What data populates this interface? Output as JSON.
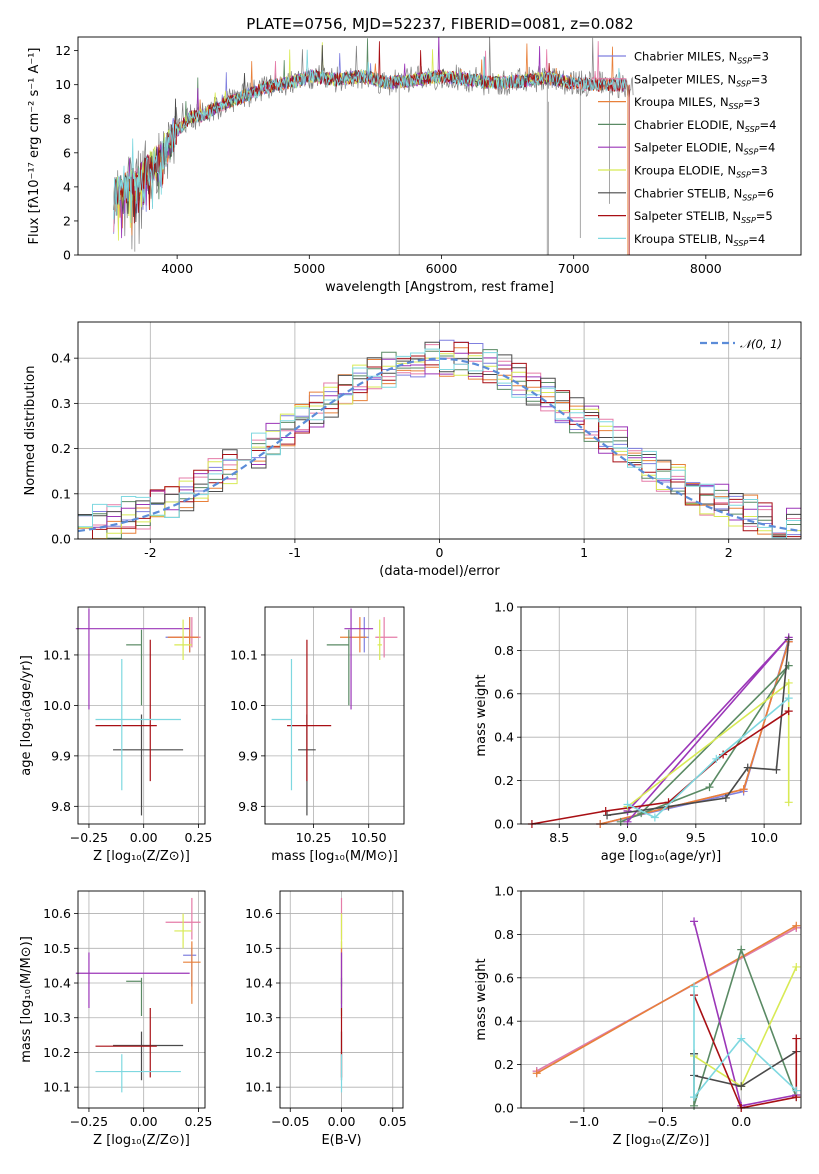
{
  "colors": {
    "chabrier_miles": "#7f7fdf",
    "salpeter_miles": "#e57ca8",
    "kroupa_miles": "#e8803a",
    "chabrier_elodie": "#5a8a64",
    "salpeter_elodie": "#9b36b8",
    "kroupa_elodie": "#d8ea55",
    "chabrier_stelib": "#4a4a4a",
    "salpeter_stelib": "#a80f14",
    "kroupa_stelib": "#7fd8e0",
    "gaussian": "#5b8cd8",
    "data_gray": "#808080",
    "grid": "#b0b0b0"
  },
  "chart_data": [
    {
      "id": "spectrum",
      "type": "line",
      "title": "PLATE=0756, MJD=52237, FIBERID=0081, z=0.082",
      "xlabel": "wavelength [Angstrom, rest frame]",
      "ylabel": "Flux [fλ10⁻¹⁷ erg cm⁻² s⁻¹ A⁻¹]",
      "xlim": [
        3250,
        8720
      ],
      "ylim": [
        0,
        12.8
      ],
      "xticks": [
        4000,
        5000,
        6000,
        7000,
        8000
      ],
      "yticks": [
        0,
        2,
        4,
        6,
        8,
        10,
        12
      ],
      "grid": false,
      "legend_position": "right",
      "continuum_x": [
        3520,
        3700,
        3800,
        3900,
        4000,
        4100,
        4200,
        4300,
        4500,
        4700,
        4900,
        5000,
        5200,
        5400,
        5600,
        5800,
        6000,
        6200,
        6400,
        6600,
        6800,
        7000,
        7200,
        7350,
        7450
      ],
      "continuum_y": [
        3.6,
        4.3,
        5.2,
        5.9,
        7.3,
        8.1,
        8.2,
        8.7,
        9.3,
        9.9,
        10.2,
        10.5,
        10.3,
        10.5,
        10.1,
        10.3,
        10.5,
        10.3,
        10.1,
        10.2,
        10.4,
        10.1,
        10.0,
        10.0,
        10.0
      ],
      "series": [
        {
          "name": "Chabrier MILES, N",
          "sub": "SSP",
          "suffix": "=3",
          "color_key": "chabrier_miles"
        },
        {
          "name": "Salpeter MILES, N",
          "sub": "SSP",
          "suffix": "=3",
          "color_key": "salpeter_miles"
        },
        {
          "name": "Kroupa MILES, N",
          "sub": "SSP",
          "suffix": "=3",
          "color_key": "kroupa_miles"
        },
        {
          "name": "Chabrier ELODIE, N",
          "sub": "SSP",
          "suffix": "=4",
          "color_key": "chabrier_elodie"
        },
        {
          "name": "Salpeter ELODIE, N",
          "sub": "SSP",
          "suffix": "=4",
          "color_key": "salpeter_elodie"
        },
        {
          "name": "Kroupa ELODIE, N",
          "sub": "SSP",
          "suffix": "=3",
          "color_key": "kroupa_elodie"
        },
        {
          "name": "Chabrier STELIB, N",
          "sub": "SSP",
          "suffix": "=6",
          "color_key": "chabrier_stelib"
        },
        {
          "name": "Salpeter STELIB, N",
          "sub": "SSP",
          "suffix": "=5",
          "color_key": "salpeter_stelib"
        },
        {
          "name": "Kroupa STELIB, N",
          "sub": "SSP",
          "suffix": "=4",
          "color_key": "kroupa_stelib"
        }
      ]
    },
    {
      "id": "residuals",
      "type": "line",
      "xlabel": "(data-model)/error",
      "ylabel": "Normed distribution",
      "xlim": [
        -2.5,
        2.5
      ],
      "ylim": [
        0,
        0.48
      ],
      "xticks": [
        -2,
        -1,
        0,
        1,
        2
      ],
      "yticks": [
        0.0,
        0.1,
        0.2,
        0.3,
        0.4
      ],
      "grid": true,
      "legend_position": "top-right",
      "gaussian_label": "𝒩(0, 1)",
      "bin_edges_start": -2.5,
      "bin_width": 0.1
    },
    {
      "id": "age_vs_z",
      "type": "scatter",
      "xlabel": "Z [log₁₀(Z/Z⊙)]",
      "ylabel": "age  [log₁₀(age/yr)]",
      "xlim": [
        -0.3,
        0.28
      ],
      "ylim": [
        9.765,
        10.195
      ],
      "xticks": [
        -0.25,
        0.0,
        0.25
      ],
      "xtick_labels": [
        "−0.25",
        "0.00",
        "0.25"
      ],
      "yticks": [
        9.8,
        9.9,
        10.0,
        10.1
      ],
      "grid": true,
      "points": [
        {
          "x": 0.21,
          "y": 10.135,
          "xerr": [
            0.11,
            0.04
          ],
          "yerr": [
            0.03,
            0.04
          ],
          "color_key": "chabrier_miles"
        },
        {
          "x": 0.22,
          "y": 10.135,
          "xerr": [
            0.1,
            0.04
          ],
          "yerr": [
            0.02,
            0.04
          ],
          "color_key": "salpeter_miles"
        },
        {
          "x": 0.21,
          "y": 10.135,
          "xerr": [
            0.1,
            0.04
          ],
          "yerr": [
            0.03,
            0.04
          ],
          "color_key": "kroupa_miles"
        },
        {
          "x": -0.01,
          "y": 10.12,
          "xerr": [
            0.07,
            0.0
          ],
          "yerr": [
            0.12,
            0.03
          ],
          "color_key": "chabrier_elodie"
        },
        {
          "x": -0.25,
          "y": 10.152,
          "xerr": [
            0.06,
            0.46
          ],
          "yerr": [
            0.16,
            0.04
          ],
          "color_key": "salpeter_elodie"
        },
        {
          "x": 0.18,
          "y": 10.12,
          "xerr": [
            0.04,
            0.04
          ],
          "yerr": [
            0.03,
            0.05
          ],
          "color_key": "kroupa_elodie"
        },
        {
          "x": -0.01,
          "y": 9.912,
          "xerr": [
            0.13,
            0.19
          ],
          "yerr": [
            0.13,
            0.07
          ],
          "color_key": "chabrier_stelib"
        },
        {
          "x": 0.03,
          "y": 9.96,
          "xerr": [
            0.25,
            0.03
          ],
          "yerr": [
            0.11,
            0.17
          ],
          "color_key": "salpeter_stelib"
        },
        {
          "x": -0.1,
          "y": 9.972,
          "xerr": [
            0.12,
            0.27
          ],
          "yerr": [
            0.14,
            0.12
          ],
          "color_key": "kroupa_stelib"
        }
      ]
    },
    {
      "id": "age_vs_mass",
      "type": "scatter",
      "xlabel": "mass [log₁₀(M/M⊙)]",
      "ylabel": "",
      "xlim": [
        10.03,
        10.66
      ],
      "ylim": [
        9.765,
        10.195
      ],
      "xticks": [
        10.25,
        10.5
      ],
      "xtick_labels": [
        "10.25",
        "10.50"
      ],
      "yticks": [
        9.8,
        9.9,
        10.0,
        10.1
      ],
      "grid": true,
      "points": [
        {
          "x": 10.48,
          "y": 10.135,
          "xerr": [
            0.02,
            0.02
          ],
          "yerr": [
            0.03,
            0.04
          ],
          "color_key": "chabrier_miles"
        },
        {
          "x": 10.57,
          "y": 10.135,
          "xerr": [
            0.04,
            0.06
          ],
          "yerr": [
            0.04,
            0.04
          ],
          "color_key": "salpeter_miles"
        },
        {
          "x": 10.46,
          "y": 10.135,
          "xerr": [
            0.09,
            0.03
          ],
          "yerr": [
            0.03,
            0.04
          ],
          "color_key": "kroupa_miles"
        },
        {
          "x": 10.41,
          "y": 10.12,
          "xerr": [
            0.1,
            0.0
          ],
          "yerr": [
            0.12,
            0.03
          ],
          "color_key": "chabrier_elodie"
        },
        {
          "x": 10.42,
          "y": 10.152,
          "xerr": [
            0.03,
            0.1
          ],
          "yerr": [
            0.16,
            0.04
          ],
          "color_key": "salpeter_elodie"
        },
        {
          "x": 10.55,
          "y": 10.12,
          "xerr": [
            0.01,
            0.01
          ],
          "yerr": [
            0.03,
            0.05
          ],
          "color_key": "kroupa_elodie"
        },
        {
          "x": 10.22,
          "y": 9.912,
          "xerr": [
            0.04,
            0.04
          ],
          "yerr": [
            0.13,
            0.07
          ],
          "color_key": "chabrier_stelib"
        },
        {
          "x": 10.22,
          "y": 9.96,
          "xerr": [
            0.09,
            0.11
          ],
          "yerr": [
            0.11,
            0.17
          ],
          "color_key": "salpeter_stelib"
        },
        {
          "x": 10.15,
          "y": 9.972,
          "xerr": [
            0.09,
            0.0
          ],
          "yerr": [
            0.14,
            0.12
          ],
          "color_key": "kroupa_stelib"
        }
      ]
    },
    {
      "id": "weight_vs_age",
      "type": "line",
      "xlabel": "age  [log₁₀(age/yr)]",
      "ylabel": "mass weight",
      "xlim": [
        8.22,
        10.27
      ],
      "ylim": [
        0,
        1.0
      ],
      "xticks": [
        8.5,
        9.0,
        9.5,
        10.0
      ],
      "xtick_labels": [
        "8.5",
        "9.0",
        "9.5",
        "10.0"
      ],
      "yticks": [
        0.0,
        0.2,
        0.4,
        0.6,
        0.8,
        1.0
      ],
      "grid": true,
      "series": [
        {
          "color_key": "chabrier_miles",
          "x": [
            8.8,
            9.85,
            10.18
          ],
          "y": [
            0.0,
            0.15,
            0.85
          ]
        },
        {
          "color_key": "salpeter_miles",
          "x": [
            8.8,
            9.85,
            10.18
          ],
          "y": [
            0.0,
            0.16,
            0.84
          ]
        },
        {
          "color_key": "kroupa_miles",
          "x": [
            8.8,
            9.85,
            10.18
          ],
          "y": [
            0.0,
            0.16,
            0.84
          ]
        },
        {
          "color_key": "chabrier_elodie",
          "x": [
            8.95,
            9.6,
            10.18,
            9.1
          ],
          "y": [
            0.01,
            0.17,
            0.73,
            0.05
          ]
        },
        {
          "color_key": "salpeter_elodie",
          "x": [
            9.0,
            9.0,
            10.18,
            9.0
          ],
          "y": [
            0.06,
            0.06,
            0.86,
            0.01
          ]
        },
        {
          "color_key": "kroupa_elodie",
          "x": [
            9.0,
            10.18,
            10.18
          ],
          "y": [
            0.08,
            0.65,
            0.1
          ]
        },
        {
          "color_key": "chabrier_stelib",
          "x": [
            8.85,
            9.3,
            9.72,
            9.88,
            10.09,
            10.18
          ],
          "y": [
            0.04,
            0.08,
            0.12,
            0.26,
            0.25,
            0.85
          ]
        },
        {
          "color_key": "salpeter_stelib",
          "x": [
            8.3,
            8.84,
            9.3,
            9.7,
            10.18
          ],
          "y": [
            0.0,
            0.06,
            0.1,
            0.32,
            0.52
          ]
        },
        {
          "color_key": "kroupa_stelib",
          "x": [
            9.0,
            9.2,
            9.65,
            10.18
          ],
          "y": [
            0.09,
            0.03,
            0.3,
            0.58
          ]
        }
      ]
    },
    {
      "id": "mass_vs_z",
      "type": "scatter",
      "xlabel": "Z [log₁₀(Z/Z⊙)]",
      "ylabel": "mass [log₁₀(M/M⊙)]",
      "xlim": [
        -0.3,
        0.28
      ],
      "ylim": [
        10.04,
        10.665
      ],
      "xticks": [
        -0.25,
        0.0,
        0.25
      ],
      "xtick_labels": [
        "−0.25",
        "0.00",
        "0.25"
      ],
      "yticks": [
        10.1,
        10.2,
        10.3,
        10.4,
        10.5,
        10.6
      ],
      "grid": true,
      "points": [
        {
          "x": 0.22,
          "y": 10.48,
          "xerr": [
            0.04,
            0.02
          ],
          "yerr": [
            0.09,
            0.02
          ],
          "color_key": "chabrier_miles"
        },
        {
          "x": 0.22,
          "y": 10.575,
          "xerr": [
            0.12,
            0.04
          ],
          "yerr": [
            0.05,
            0.07
          ],
          "color_key": "salpeter_miles"
        },
        {
          "x": 0.22,
          "y": 10.46,
          "xerr": [
            0.04,
            0.04
          ],
          "yerr": [
            0.12,
            0.06
          ],
          "color_key": "kroupa_miles"
        },
        {
          "x": -0.01,
          "y": 10.405,
          "xerr": [
            0.07,
            0.0
          ],
          "yerr": [
            0.1,
            0.01
          ],
          "color_key": "chabrier_elodie"
        },
        {
          "x": -0.25,
          "y": 10.428,
          "xerr": [
            0.06,
            0.46
          ],
          "yerr": [
            0.1,
            0.06
          ],
          "color_key": "salpeter_elodie"
        },
        {
          "x": 0.18,
          "y": 10.55,
          "xerr": [
            0.04,
            0.04
          ],
          "yerr": [
            0.05,
            0.05
          ],
          "color_key": "kroupa_elodie"
        },
        {
          "x": -0.01,
          "y": 10.22,
          "xerr": [
            0.13,
            0.19
          ],
          "yerr": [
            0.1,
            0.04
          ],
          "color_key": "chabrier_stelib"
        },
        {
          "x": 0.03,
          "y": 10.218,
          "xerr": [
            0.25,
            0.03
          ],
          "yerr": [
            0.09,
            0.11
          ],
          "color_key": "salpeter_stelib"
        },
        {
          "x": -0.1,
          "y": 10.145,
          "xerr": [
            0.12,
            0.27
          ],
          "yerr": [
            0.06,
            0.05
          ],
          "color_key": "kroupa_stelib"
        }
      ]
    },
    {
      "id": "mass_vs_ebv",
      "type": "scatter",
      "xlabel": "E(B-V)",
      "ylabel": "",
      "xlim": [
        -0.06,
        0.06
      ],
      "ylim": [
        10.04,
        10.665
      ],
      "xticks": [
        -0.05,
        0.0,
        0.05
      ],
      "xtick_labels": [
        "−0.05",
        "0.00",
        "0.05"
      ],
      "yticks": [
        10.1,
        10.2,
        10.3,
        10.4,
        10.5,
        10.6
      ],
      "grid": true,
      "points": [
        {
          "x": 0.0,
          "y": 10.48,
          "yerr": [
            0.09,
            0.02
          ],
          "color_key": "chabrier_miles"
        },
        {
          "x": 0.0,
          "y": 10.575,
          "yerr": [
            0.05,
            0.07
          ],
          "color_key": "salpeter_miles"
        },
        {
          "x": 0.0,
          "y": 10.46,
          "yerr": [
            0.12,
            0.06
          ],
          "color_key": "kroupa_miles"
        },
        {
          "x": 0.0,
          "y": 10.405,
          "yerr": [
            0.1,
            0.01
          ],
          "color_key": "chabrier_elodie"
        },
        {
          "x": 0.0,
          "y": 10.428,
          "yerr": [
            0.1,
            0.06
          ],
          "color_key": "salpeter_elodie"
        },
        {
          "x": 0.0,
          "y": 10.55,
          "yerr": [
            0.05,
            0.05
          ],
          "color_key": "kroupa_elodie"
        },
        {
          "x": 0.0,
          "y": 10.22,
          "yerr": [
            0.1,
            0.04
          ],
          "color_key": "chabrier_stelib"
        },
        {
          "x": 0.0,
          "y": 10.218,
          "yerr": [
            0.09,
            0.11
          ],
          "color_key": "salpeter_stelib"
        },
        {
          "x": 0.0,
          "y": 10.145,
          "yerr": [
            0.06,
            0.05
          ],
          "color_key": "kroupa_stelib"
        }
      ]
    },
    {
      "id": "weight_vs_z",
      "type": "line",
      "xlabel": "Z [log₁₀(Z/Z⊙)]",
      "ylabel": "mass weight",
      "xlim": [
        -1.4,
        0.38
      ],
      "ylim": [
        0,
        1.0
      ],
      "xticks": [
        -1.0,
        -0.5,
        0.0
      ],
      "xtick_labels": [
        "−1.0",
        "−0.5",
        "0.0"
      ],
      "yticks": [
        0.0,
        0.2,
        0.4,
        0.6,
        0.8,
        1.0
      ],
      "grid": true,
      "series": [
        {
          "color_key": "chabrier_miles",
          "x": [
            -1.3,
            0.35
          ],
          "y": [
            0.17,
            0.83
          ]
        },
        {
          "color_key": "salpeter_miles",
          "x": [
            -1.3,
            0.35
          ],
          "y": [
            0.17,
            0.83
          ]
        },
        {
          "color_key": "kroupa_miles",
          "x": [
            -1.3,
            0.35
          ],
          "y": [
            0.16,
            0.84
          ]
        },
        {
          "color_key": "chabrier_elodie",
          "x": [
            -0.3,
            -0.3,
            0.0,
            0.35
          ],
          "y": [
            0.25,
            0.01,
            0.73,
            0.05
          ]
        },
        {
          "color_key": "salpeter_elodie",
          "x": [
            -0.3,
            0.0,
            0.35
          ],
          "y": [
            0.86,
            0.01,
            0.06
          ]
        },
        {
          "color_key": "kroupa_elodie",
          "x": [
            -0.3,
            0.0,
            0.35
          ],
          "y": [
            0.24,
            0.1,
            0.65
          ]
        },
        {
          "color_key": "chabrier_stelib",
          "x": [
            -0.3,
            -0.3,
            0.0,
            0.35
          ],
          "y": [
            0.25,
            0.15,
            0.1,
            0.26
          ]
        },
        {
          "color_key": "salpeter_stelib",
          "x": [
            -0.3,
            0.0,
            0.35,
            0.35
          ],
          "y": [
            0.52,
            0.0,
            0.05,
            0.32
          ]
        },
        {
          "color_key": "kroupa_stelib",
          "x": [
            -0.3,
            -0.3,
            0.0,
            0.35
          ],
          "y": [
            0.56,
            0.05,
            0.32,
            0.08
          ]
        }
      ]
    }
  ]
}
